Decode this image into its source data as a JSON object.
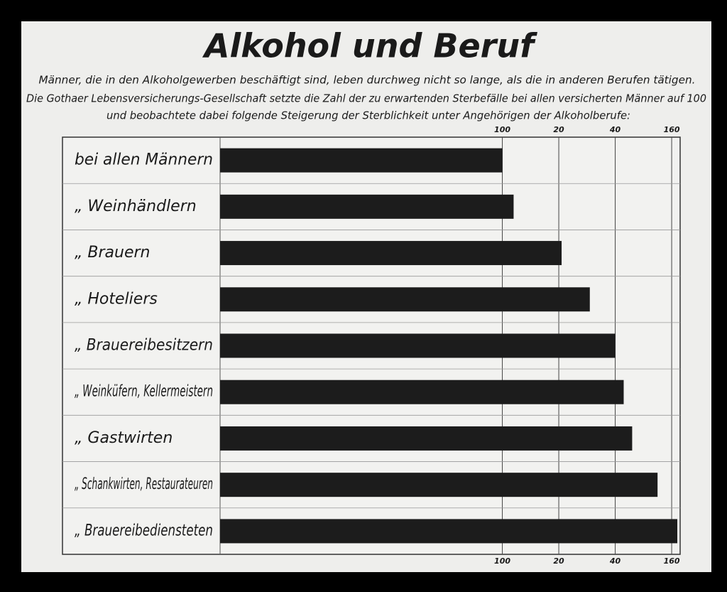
{
  "chart_data": {
    "type": "bar",
    "orientation": "horizontal",
    "title": "Alkohol und Beruf",
    "subtitle": [
      "Männer, die in den Alkoholgewerben beschäftigt sind, leben durchweg nicht so lange, als die in anderen Berufen tätigen.",
      "Die Gothaer Lebensversicherungs-Gesellschaft setzte die Zahl der zu erwartenden Sterbefälle bei allen versicherten Männer auf 100",
      "und beobachtete dabei folgende Steigerung der Sterblichkeit unter Angehörigen der Alkoholberufe:"
    ],
    "categories": [
      "bei allen Männern",
      "„ Weinhändlern",
      "„ Brauern",
      "„ Hoteliers",
      "„ Brauereibesitzern",
      "„ Weinküfern, Kellermeistern",
      "„ Gastwirten",
      "„ Schankwirten, Restaurateuren",
      "„ Brauereibediensteten"
    ],
    "values": [
      100,
      104,
      121,
      131,
      140,
      143,
      146,
      155,
      162
    ],
    "color": "#1c1c1c",
    "xlim": [
      0,
      163
    ],
    "xticks": [
      100,
      {
        "value": 120,
        "label": "20"
      },
      {
        "value": 140,
        "label": "40"
      },
      160
    ],
    "grid": true
  }
}
